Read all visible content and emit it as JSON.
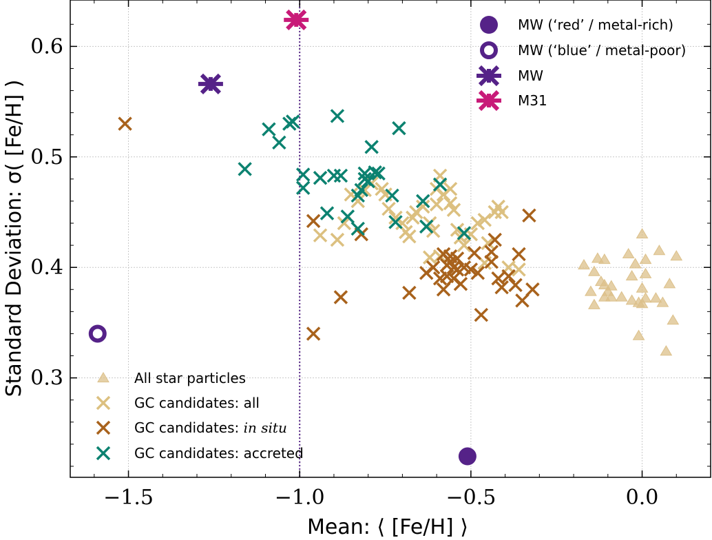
{
  "chart_data": {
    "type": "scatter",
    "xlabel": "Mean: ⟨ [Fe/H] ⟩",
    "ylabel": "Standard Deviation: σ( [Fe/H] )",
    "xlim": [
      -1.67,
      0.2
    ],
    "ylim": [
      0.21,
      0.642
    ],
    "xticks": [
      -1.5,
      -1.0,
      -0.5,
      0.0
    ],
    "xtick_labels": [
      "−1.5",
      "−1.0",
      "−0.5",
      "0.0"
    ],
    "yticks": [
      0.3,
      0.4,
      0.5,
      0.6
    ],
    "ytick_labels": [
      "0.3",
      "0.4",
      "0.5",
      "0.6"
    ],
    "grid": true,
    "vline_x": -1.0,
    "colors": {
      "stars": "#dcc08a",
      "gc_all": "#dcc080",
      "gc_insitu": "#a8621c",
      "gc_accreted": "#0c8270",
      "mw": "#552288",
      "m31": "#c81a78",
      "vline": "#552288"
    },
    "legend_top": {
      "placement": "top-right",
      "entries": [
        {
          "label": "MW (‘red’ / metal-rich)",
          "marker": "filled-circle",
          "color": "#552288"
        },
        {
          "label": "MW (‘blue’ / metal-poor)",
          "marker": "open-circle",
          "color": "#552288"
        },
        {
          "label": "MW",
          "marker": "x-errorbar",
          "color": "#552288"
        },
        {
          "label": "M31",
          "marker": "x-errorbar",
          "color": "#c81a78"
        }
      ]
    },
    "legend_bottom": {
      "placement": "bottom-left",
      "entries": [
        {
          "label": "All star particles",
          "label_italic": "",
          "marker": "triangle",
          "color": "#dcc08a"
        },
        {
          "label": "GC candidates:  all",
          "label_italic": "",
          "marker": "x",
          "color": "#dcc080"
        },
        {
          "label": "GC candidates:  ",
          "label_italic": "in situ",
          "marker": "x",
          "color": "#a8621c"
        },
        {
          "label": "GC candidates:  accreted",
          "label_italic": "",
          "marker": "x",
          "color": "#0c8270"
        }
      ]
    },
    "series": [
      {
        "name": "All star particles",
        "marker": "triangle",
        "color": "#dcc08a",
        "points": [
          [
            -0.17,
            0.402
          ],
          [
            -0.13,
            0.408
          ],
          [
            -0.11,
            0.407
          ],
          [
            -0.14,
            0.396
          ],
          [
            -0.12,
            0.387
          ],
          [
            -0.15,
            0.378
          ],
          [
            -0.14,
            0.366
          ],
          [
            -0.11,
            0.384
          ],
          [
            -0.1,
            0.378
          ],
          [
            -0.09,
            0.383
          ],
          [
            -0.11,
            0.373
          ],
          [
            -0.09,
            0.373
          ],
          [
            -0.06,
            0.373
          ],
          [
            -0.03,
            0.37
          ],
          [
            -0.01,
            0.368
          ],
          [
            0.01,
            0.372
          ],
          [
            0.0,
            0.367
          ],
          [
            -0.03,
            0.392
          ],
          [
            -0.04,
            0.412
          ],
          [
            -0.02,
            0.403
          ],
          [
            0.01,
            0.407
          ],
          [
            0.01,
            0.394
          ],
          [
            0.0,
            0.381
          ],
          [
            0.0,
            0.43
          ],
          [
            0.05,
            0.415
          ],
          [
            0.1,
            0.41
          ],
          [
            0.04,
            0.372
          ],
          [
            0.06,
            0.368
          ],
          [
            0.08,
            0.385
          ],
          [
            0.09,
            0.352
          ],
          [
            -0.01,
            0.338
          ],
          [
            0.07,
            0.324
          ]
        ]
      },
      {
        "name": "GC candidates: all",
        "marker": "x",
        "color": "#dcc080",
        "points": [
          [
            -0.94,
            0.429
          ],
          [
            -0.89,
            0.425
          ],
          [
            -0.87,
            0.44
          ],
          [
            -0.85,
            0.466
          ],
          [
            -0.83,
            0.46
          ],
          [
            -0.81,
            0.47
          ],
          [
            -0.79,
            0.476
          ],
          [
            -0.76,
            0.471
          ],
          [
            -0.75,
            0.466
          ],
          [
            -0.74,
            0.453
          ],
          [
            -0.72,
            0.445
          ],
          [
            -0.7,
            0.44
          ],
          [
            -0.69,
            0.432
          ],
          [
            -0.68,
            0.428
          ],
          [
            -0.67,
            0.445
          ],
          [
            -0.66,
            0.45
          ],
          [
            -0.64,
            0.455
          ],
          [
            -0.62,
            0.44
          ],
          [
            -0.61,
            0.433
          ],
          [
            -0.6,
            0.457
          ],
          [
            -0.6,
            0.471
          ],
          [
            -0.59,
            0.483
          ],
          [
            -0.58,
            0.466
          ],
          [
            -0.56,
            0.471
          ],
          [
            -0.56,
            0.458
          ],
          [
            -0.55,
            0.452
          ],
          [
            -0.54,
            0.434
          ],
          [
            -0.53,
            0.427
          ],
          [
            -0.52,
            0.42
          ],
          [
            -0.5,
            0.43
          ],
          [
            -0.48,
            0.44
          ],
          [
            -0.46,
            0.443
          ],
          [
            -0.43,
            0.45
          ],
          [
            -0.42,
            0.455
          ],
          [
            -0.41,
            0.45
          ],
          [
            -0.45,
            0.422
          ],
          [
            -0.46,
            0.404
          ],
          [
            -0.39,
            0.4
          ],
          [
            -0.36,
            0.398
          ],
          [
            -0.59,
            0.41
          ],
          [
            -0.62,
            0.409
          ]
        ]
      },
      {
        "name": "GC candidates: in situ",
        "marker": "x",
        "color": "#a8621c",
        "points": [
          [
            -1.51,
            0.53
          ],
          [
            -0.96,
            0.442
          ],
          [
            -0.96,
            0.34
          ],
          [
            -0.88,
            0.373
          ],
          [
            -0.82,
            0.43
          ],
          [
            -0.68,
            0.377
          ],
          [
            -0.63,
            0.395
          ],
          [
            -0.61,
            0.4
          ],
          [
            -0.59,
            0.39
          ],
          [
            -0.58,
            0.38
          ],
          [
            -0.57,
            0.392
          ],
          [
            -0.56,
            0.405
          ],
          [
            -0.56,
            0.41
          ],
          [
            -0.55,
            0.4
          ],
          [
            -0.54,
            0.398
          ],
          [
            -0.53,
            0.385
          ],
          [
            -0.52,
            0.4
          ],
          [
            -0.55,
            0.39
          ],
          [
            -0.57,
            0.402
          ],
          [
            -0.54,
            0.408
          ],
          [
            -0.5,
            0.398
          ],
          [
            -0.49,
            0.413
          ],
          [
            -0.48,
            0.395
          ],
          [
            -0.47,
            0.357
          ],
          [
            -0.44,
            0.405
          ],
          [
            -0.44,
            0.414
          ],
          [
            -0.43,
            0.425
          ],
          [
            -0.42,
            0.39
          ],
          [
            -0.41,
            0.382
          ],
          [
            -0.39,
            0.392
          ],
          [
            -0.37,
            0.384
          ],
          [
            -0.36,
            0.412
          ],
          [
            -0.35,
            0.37
          ],
          [
            -0.33,
            0.447
          ],
          [
            -0.32,
            0.38
          ],
          [
            -0.58,
            0.412
          ]
        ]
      },
      {
        "name": "GC candidates: accreted",
        "marker": "x",
        "color": "#0c8270",
        "points": [
          [
            -1.16,
            0.489
          ],
          [
            -1.09,
            0.525
          ],
          [
            -1.06,
            0.513
          ],
          [
            -1.03,
            0.53
          ],
          [
            -1.02,
            0.532
          ],
          [
            -0.99,
            0.484
          ],
          [
            -0.99,
            0.472
          ],
          [
            -0.94,
            0.481
          ],
          [
            -0.92,
            0.449
          ],
          [
            -0.9,
            0.483
          ],
          [
            -0.88,
            0.483
          ],
          [
            -0.89,
            0.537
          ],
          [
            -0.86,
            0.446
          ],
          [
            -0.83,
            0.435
          ],
          [
            -0.81,
            0.485
          ],
          [
            -0.8,
            0.478
          ],
          [
            -0.79,
            0.509
          ],
          [
            -0.78,
            0.486
          ],
          [
            -0.82,
            0.47
          ],
          [
            -0.83,
            0.465
          ],
          [
            -0.81,
            0.48
          ],
          [
            -0.77,
            0.485
          ],
          [
            -0.73,
            0.465
          ],
          [
            -0.72,
            0.441
          ],
          [
            -0.71,
            0.526
          ],
          [
            -0.64,
            0.46
          ],
          [
            -0.63,
            0.437
          ],
          [
            -0.59,
            0.475
          ],
          [
            -0.52,
            0.431
          ]
        ]
      },
      {
        "name": "MW (‘red’ / metal-rich)",
        "marker": "filled-circle",
        "color": "#552288",
        "points": [
          [
            -0.51,
            0.229
          ]
        ]
      },
      {
        "name": "MW (‘blue’ / metal-poor)",
        "marker": "open-circle",
        "color": "#552288",
        "points": [
          [
            -1.59,
            0.34
          ]
        ]
      },
      {
        "name": "MW",
        "marker": "x-errorbar",
        "color": "#552288",
        "points": [
          [
            -1.26,
            0.566
          ]
        ]
      },
      {
        "name": "M31",
        "marker": "x-errorbar",
        "color": "#c81a78",
        "points": [
          [
            -1.01,
            0.624
          ]
        ]
      }
    ]
  }
}
